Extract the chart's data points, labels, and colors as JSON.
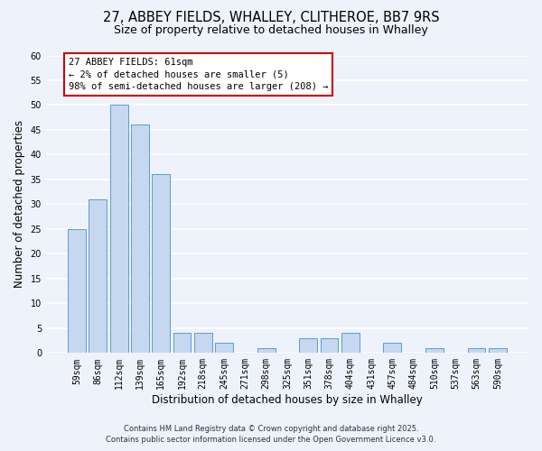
{
  "title": "27, ABBEY FIELDS, WHALLEY, CLITHEROE, BB7 9RS",
  "subtitle": "Size of property relative to detached houses in Whalley",
  "xlabel": "Distribution of detached houses by size in Whalley",
  "ylabel": "Number of detached properties",
  "bar_labels": [
    "59sqm",
    "86sqm",
    "112sqm",
    "139sqm",
    "165sqm",
    "192sqm",
    "218sqm",
    "245sqm",
    "271sqm",
    "298sqm",
    "325sqm",
    "351sqm",
    "378sqm",
    "404sqm",
    "431sqm",
    "457sqm",
    "484sqm",
    "510sqm",
    "537sqm",
    "563sqm",
    "590sqm"
  ],
  "bar_values": [
    25,
    31,
    50,
    46,
    36,
    4,
    4,
    2,
    0,
    1,
    0,
    3,
    3,
    4,
    0,
    2,
    0,
    1,
    0,
    1,
    1
  ],
  "bar_color": "#c5d8f0",
  "bar_edge_color": "#5b9bd5",
  "annotation_box_text": "27 ABBEY FIELDS: 61sqm\n← 2% of detached houses are smaller (5)\n98% of semi-detached houses are larger (208) →",
  "annotation_box_edge_color": "#cc0000",
  "annotation_box_face_color": "#ffffff",
  "ylim": [
    0,
    60
  ],
  "yticks": [
    0,
    5,
    10,
    15,
    20,
    25,
    30,
    35,
    40,
    45,
    50,
    55,
    60
  ],
  "footer_line1": "Contains HM Land Registry data © Crown copyright and database right 2025.",
  "footer_line2": "Contains public sector information licensed under the Open Government Licence v3.0.",
  "background_color": "#eef2fa",
  "grid_color": "#ffffff",
  "title_fontsize": 10.5,
  "subtitle_fontsize": 9,
  "axis_label_fontsize": 8.5,
  "tick_fontsize": 7,
  "annotation_fontsize": 7.5,
  "footer_fontsize": 6
}
